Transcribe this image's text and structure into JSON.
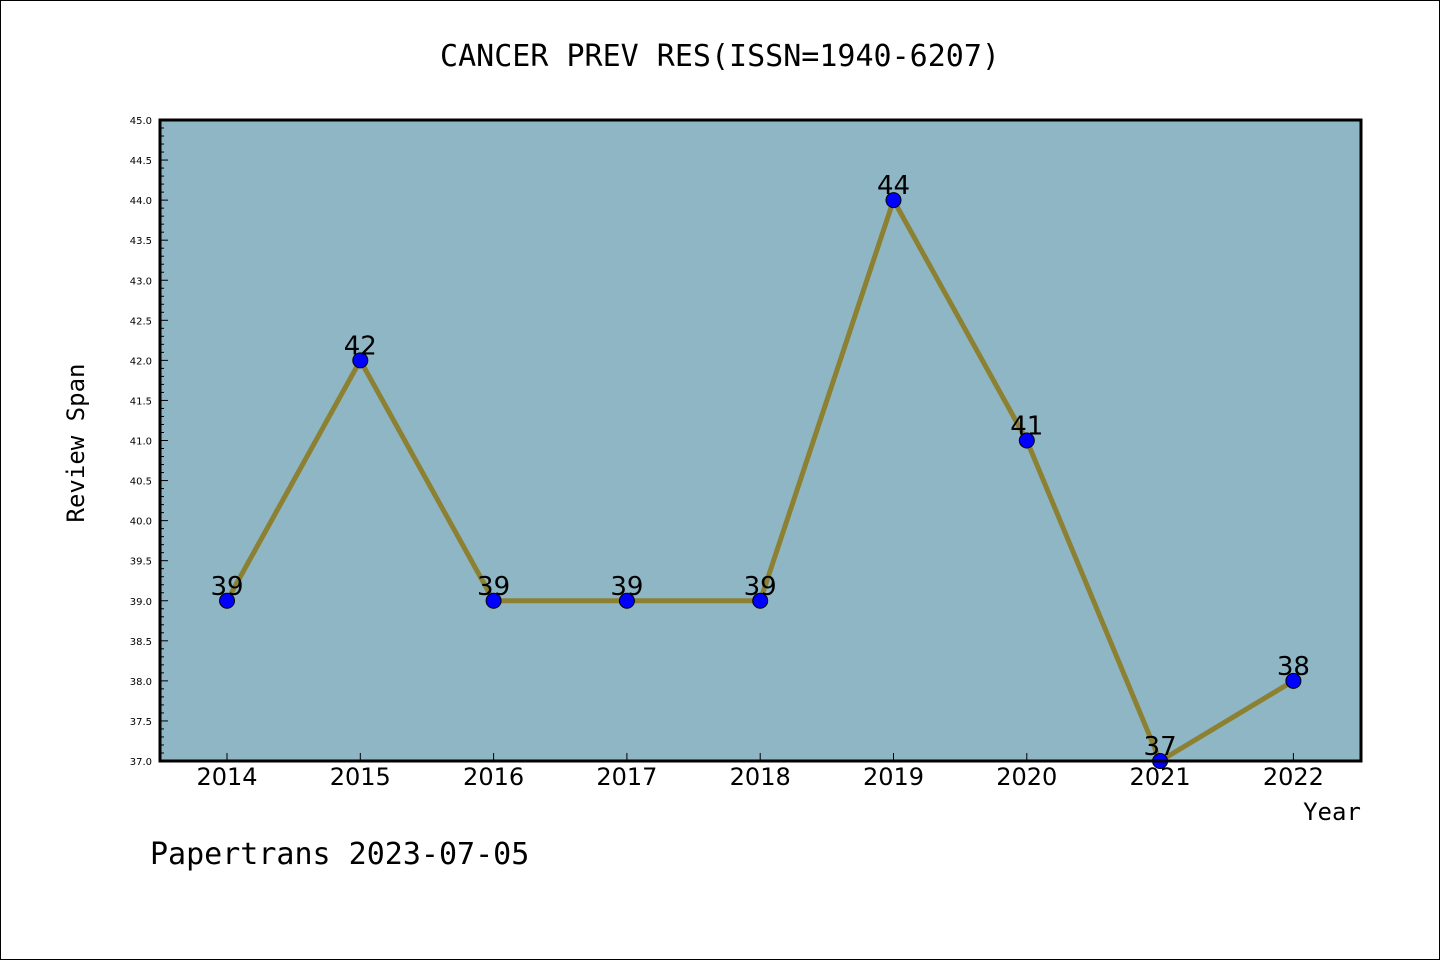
{
  "chart_data": {
    "type": "line",
    "title": "CANCER PREV RES(ISSN=1940-6207)",
    "xlabel": "Year",
    "ylabel": "Review Span",
    "categories": [
      "2014",
      "2015",
      "2016",
      "2017",
      "2018",
      "2019",
      "2020",
      "2021",
      "2022"
    ],
    "series": [
      {
        "values": [
          39,
          42,
          39,
          39,
          39,
          44,
          41,
          37,
          38
        ]
      }
    ],
    "ylim": [
      37.0,
      45.0
    ],
    "yticks": [
      "37.0",
      "37.5",
      "38.0",
      "38.5",
      "39.0",
      "39.5",
      "40.0",
      "40.5",
      "41.0",
      "41.5",
      "42.0",
      "42.5",
      "43.0",
      "43.5",
      "44.0",
      "44.5",
      "45.0"
    ],
    "grid": false,
    "colors": {
      "plot_background": "#8fb6c4",
      "line": "#8c8132",
      "marker": "#0000ff"
    }
  },
  "footer": "Papertrans 2023-07-05"
}
